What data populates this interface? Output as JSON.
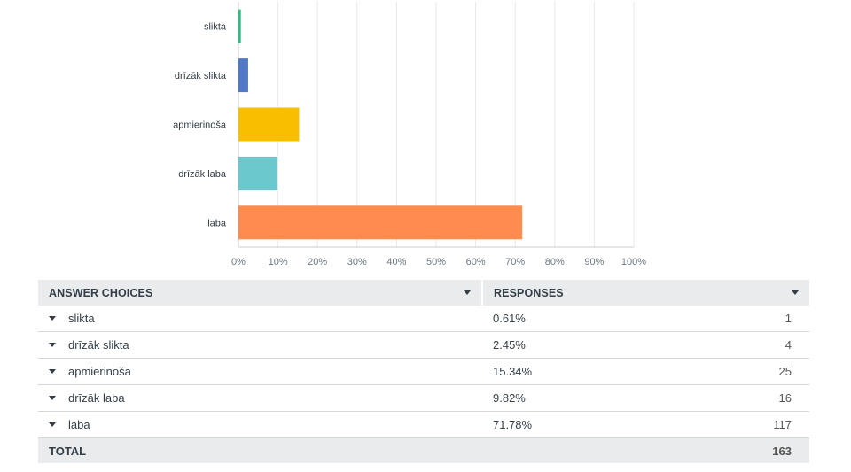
{
  "chart_data": {
    "type": "bar",
    "orientation": "horizontal",
    "categories": [
      "slikta",
      "drīzāk slikta",
      "apmierinoša",
      "drīzāk laba",
      "laba"
    ],
    "values": [
      0.61,
      2.45,
      15.34,
      9.82,
      71.78
    ],
    "colors": [
      "#26c281",
      "#5279c5",
      "#f9be00",
      "#6bc8cd",
      "#ff8b4f"
    ],
    "xlim": [
      0,
      100
    ],
    "xticks": [
      "0%",
      "10%",
      "20%",
      "30%",
      "40%",
      "50%",
      "60%",
      "70%",
      "80%",
      "90%",
      "100%"
    ],
    "grid": true
  },
  "table": {
    "headers": {
      "choices": "ANSWER CHOICES",
      "responses": "RESPONSES"
    },
    "rows": [
      {
        "label": "slikta",
        "percent": "0.61%",
        "count": "1"
      },
      {
        "label": "drīzāk slikta",
        "percent": "2.45%",
        "count": "4"
      },
      {
        "label": "apmierinoša",
        "percent": "15.34%",
        "count": "25"
      },
      {
        "label": "drīzāk laba",
        "percent": "9.82%",
        "count": "16"
      },
      {
        "label": "laba",
        "percent": "71.78%",
        "count": "117"
      }
    ],
    "total": {
      "label": "TOTAL",
      "count": "163"
    }
  }
}
